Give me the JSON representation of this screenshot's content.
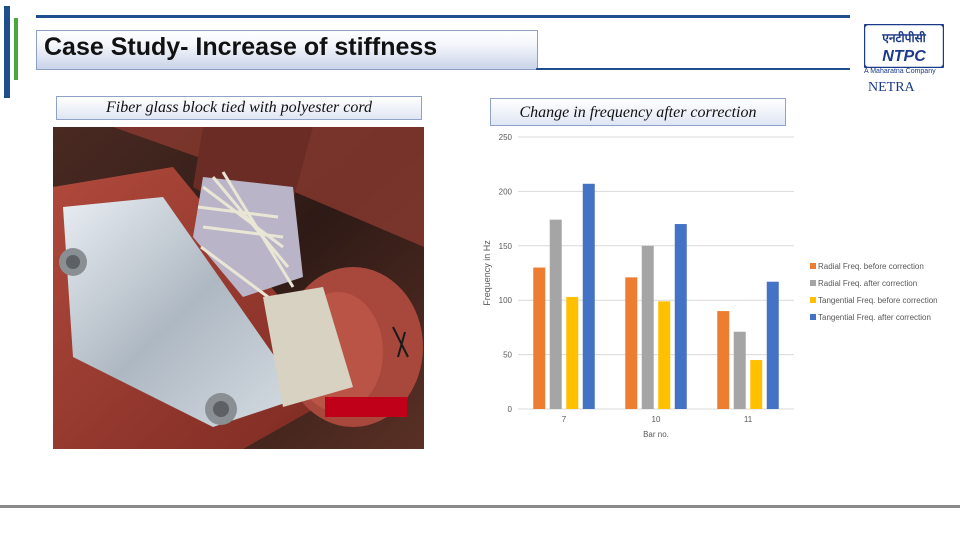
{
  "header": {
    "title": "Case Study- Increase of stiffness",
    "logo_text": "NTPC",
    "logo_hindi": "एनटीपीसी",
    "logo_tagline": "A Maharatna Company",
    "netra_label": "NETRA"
  },
  "left_panel": {
    "caption": "Fiber glass block tied with polyester cord",
    "photo": "fiber-glass-block-photo"
  },
  "right_panel": {
    "caption": "Change in frequency after correction"
  },
  "colors": {
    "brand_blue": "#1f4e8c",
    "brand_green": "#4aa83a"
  },
  "chart_data": {
    "type": "bar",
    "title": "",
    "xlabel": "Bar no.",
    "ylabel": "Frequency in Hz",
    "categories": [
      "7",
      "10",
      "11"
    ],
    "ylim": [
      0,
      250
    ],
    "yticks": [
      0,
      50,
      100,
      150,
      200,
      250
    ],
    "grid": true,
    "legend_position": "right",
    "series": [
      {
        "name": "Radial Freq. before correction",
        "color": "#ed7d31",
        "values": [
          130,
          121,
          90
        ]
      },
      {
        "name": "Radial Freq. after correction",
        "color": "#a5a5a5",
        "values": [
          174,
          150,
          71
        ]
      },
      {
        "name": "Tangential Freq. before correction",
        "color": "#ffc000",
        "values": [
          103,
          99,
          45
        ]
      },
      {
        "name": "Tangential Freq. after correction",
        "color": "#4472c4",
        "values": [
          207,
          170,
          117
        ]
      }
    ]
  }
}
